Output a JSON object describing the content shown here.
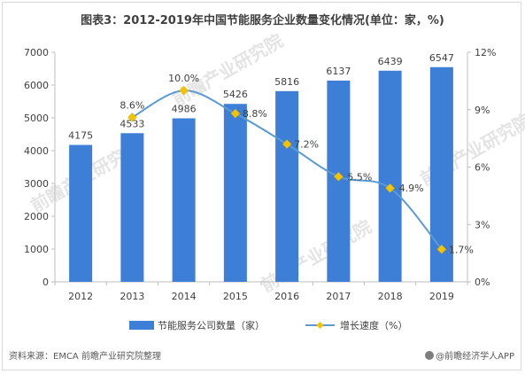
{
  "title": "图表3：2012-2019年中国节能服务企业数量变化情况(单位：家，%)",
  "source": "资料来源：EMCA 前瞻产业研究院整理",
  "credit": "@前瞻经济学人APP",
  "watermark": "前瞻产业研究院",
  "colors": {
    "bar": "#3d7fd6",
    "line": "#5b9bd5",
    "marker": "#f2c300",
    "axis": "#bfbfbf",
    "text": "#404040"
  },
  "chart_data": {
    "type": "bar",
    "categories": [
      "2012",
      "2013",
      "2014",
      "2015",
      "2016",
      "2017",
      "2018",
      "2019"
    ],
    "series": [
      {
        "name": "节能服务公司数量（家）",
        "type": "bar",
        "axis": "left",
        "values": [
          4175,
          4533,
          4986,
          5426,
          5816,
          6137,
          6439,
          6547
        ],
        "labels": [
          "4175",
          "4533",
          "4986",
          "5426",
          "5816",
          "6137",
          "6439",
          "6547"
        ]
      },
      {
        "name": "增长速度（%）",
        "type": "line",
        "axis": "right",
        "values": [
          null,
          8.6,
          10.0,
          8.8,
          7.2,
          5.5,
          4.9,
          1.7
        ],
        "labels": [
          "",
          "8.6%",
          "10.0%",
          "8.8%",
          "7.2%",
          "5.5%",
          "4.9%",
          "1.7%"
        ]
      }
    ],
    "y_left": {
      "min": 0,
      "max": 7000,
      "ticks": [
        "0",
        "1000",
        "2000",
        "3000",
        "4000",
        "5000",
        "6000",
        "7000"
      ]
    },
    "y_right": {
      "min": 0,
      "max": 12,
      "ticks": [
        "0%",
        "3%",
        "6%",
        "9%",
        "12%"
      ]
    },
    "legend": "bottom",
    "grid": false
  }
}
